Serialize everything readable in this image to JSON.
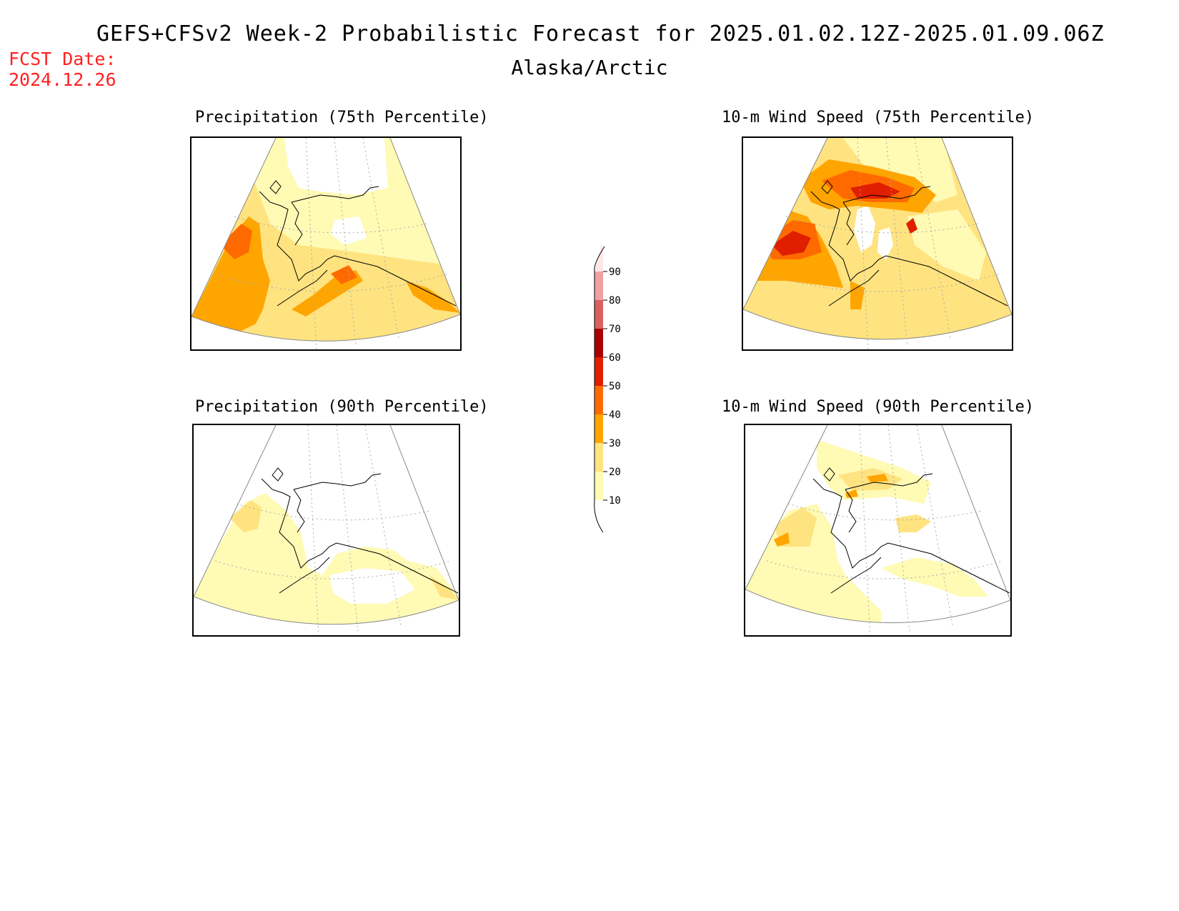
{
  "title": "GEFS+CFSv2 Week-2 Probabilistic Forecast for 2025.01.02.12Z-2025.01.09.06Z",
  "subtitle": "Alaska/Arctic",
  "fcst_label": "FCST Date:",
  "fcst_date": "2024.12.26",
  "panels": [
    {
      "id": "precip75",
      "title": "Precipitation (75th Percentile)"
    },
    {
      "id": "wind75",
      "title": "10-m Wind Speed (75th Percentile)"
    },
    {
      "id": "precip90",
      "title": "Precipitation (90th Percentile)"
    },
    {
      "id": "wind90",
      "title": "10-m Wind Speed (90th Percentile)"
    }
  ],
  "colorbar": {
    "levels": [
      "10",
      "20",
      "30",
      "40",
      "50",
      "60",
      "70",
      "80",
      "90"
    ],
    "colors": [
      "#fffab4",
      "#ffe380",
      "#ffa500",
      "#ff6a00",
      "#e01e00",
      "#a80000",
      "#d86060",
      "#f0a0a0",
      "#fde6e6"
    ]
  }
}
